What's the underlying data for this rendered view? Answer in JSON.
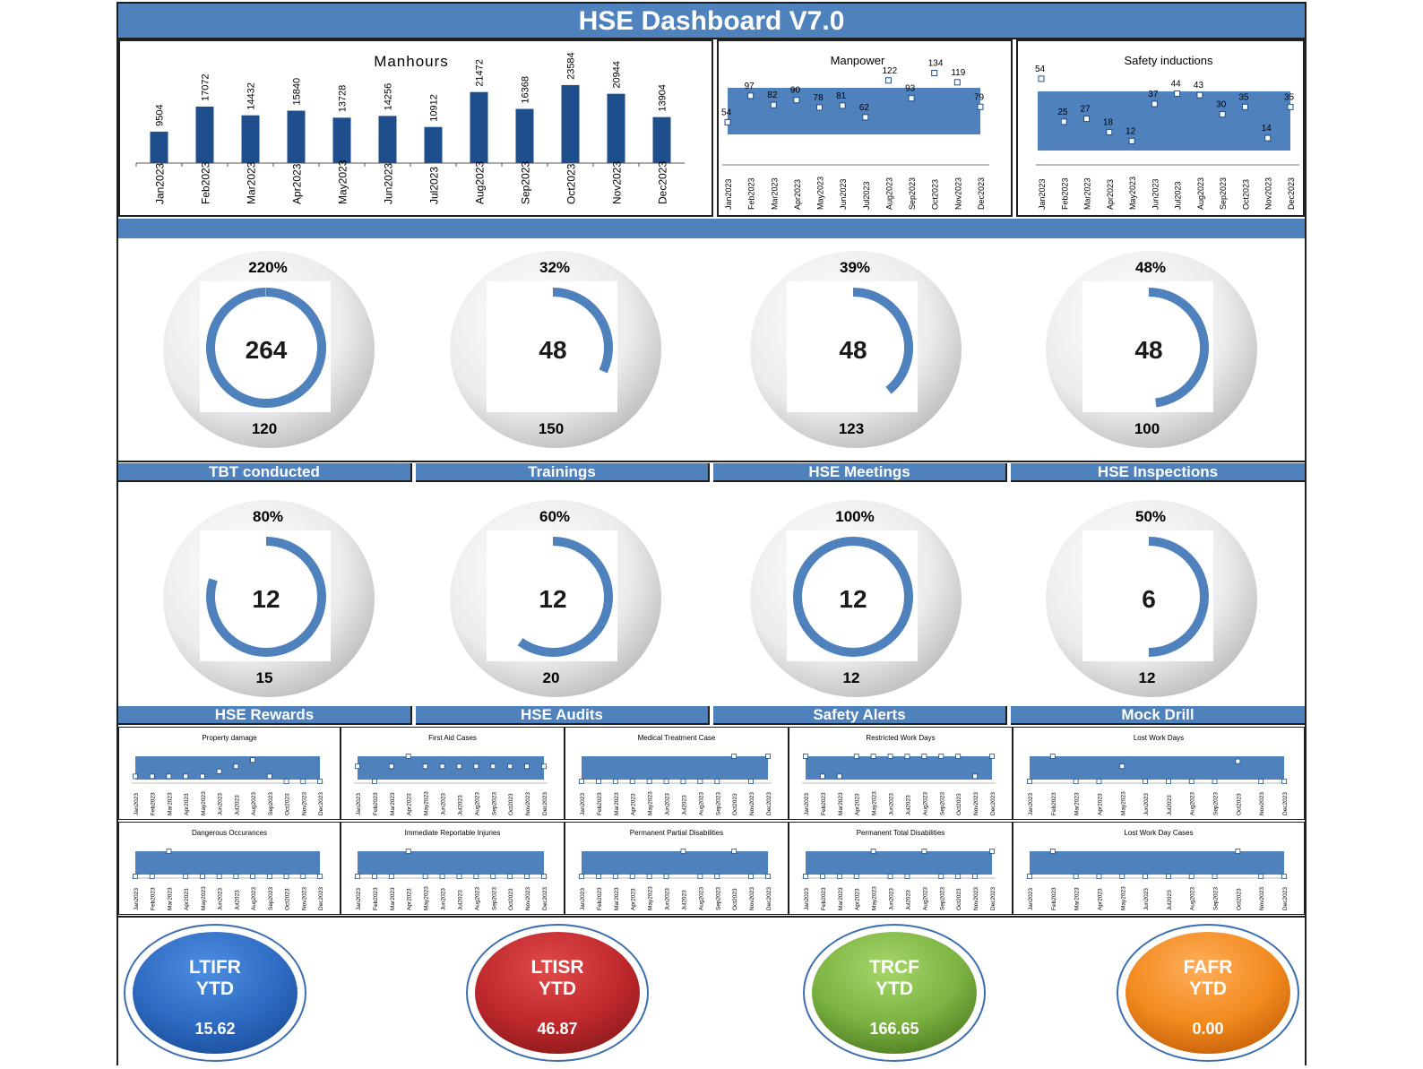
{
  "title": "HSE Dashboard V7.0",
  "colors": {
    "accent": "#4f81bd",
    "bar": "#1f4e8c",
    "blue": "#2e6bc2",
    "red": "#c0292c",
    "green": "#7cb342",
    "orange": "#f28a1e"
  },
  "months": [
    "Jan2023",
    "Feb2023",
    "Mar2023",
    "Apr2023",
    "May2023",
    "Jun2023",
    "Jul2023",
    "Aug2023",
    "Sep2023",
    "Oct2023",
    "Nov2023",
    "Dec2023"
  ],
  "chart_data": [
    {
      "type": "bar",
      "title": "Manhours",
      "categories": [
        "Jan2023",
        "Feb2023",
        "Mar2023",
        "Apr2023",
        "May2023",
        "Jun2023",
        "Jul2023",
        "Aug2023",
        "Sep2023",
        "Oct2023",
        "Nov2023",
        "Dec2023"
      ],
      "values": [
        9504,
        17072,
        14432,
        15840,
        13728,
        14256,
        10912,
        21472,
        16368,
        23584,
        20944,
        13904
      ],
      "ylim": [
        0,
        26000
      ]
    },
    {
      "type": "line",
      "title": "Manpower",
      "categories": [
        "Jan2023",
        "Feb2023",
        "Mar2023",
        "Apr2023",
        "May2023",
        "Jun2023",
        "Jul2023",
        "Aug2023",
        "Sep2023",
        "Oct2023",
        "Nov2023",
        "Dec2023"
      ],
      "values": [
        54,
        97,
        82,
        90,
        78,
        81,
        62,
        122,
        93,
        134,
        119,
        79
      ],
      "ylim": [
        40,
        145
      ]
    },
    {
      "type": "line",
      "title": "Safety inductions",
      "categories": [
        "Jan2023",
        "Feb2023",
        "Mar2023",
        "Apr2023",
        "May2023",
        "Jun2023",
        "Jul2023",
        "Aug2023",
        "Sep2023",
        "Oct2023",
        "Nov2023",
        "Dec2023"
      ],
      "values": [
        54,
        25,
        27,
        18,
        12,
        37,
        44,
        43,
        30,
        35,
        14,
        35
      ],
      "ylim": [
        8,
        60
      ]
    }
  ],
  "gauges_row1": [
    {
      "pct": "220%",
      "value": "264",
      "target": "120",
      "fill": 1.0
    },
    {
      "pct": "32%",
      "value": "48",
      "target": "150",
      "fill": 0.32
    },
    {
      "pct": "39%",
      "value": "48",
      "target": "123",
      "fill": 0.39
    },
    {
      "pct": "48%",
      "value": "48",
      "target": "100",
      "fill": 0.48
    }
  ],
  "labels_row1": [
    "TBT conducted",
    "Trainings",
    "HSE  Meetings",
    "HSE Inspections"
  ],
  "gauges_row2": [
    {
      "pct": "80%",
      "value": "12",
      "target": "15",
      "fill": 0.8
    },
    {
      "pct": "60%",
      "value": "12",
      "target": "20",
      "fill": 0.6
    },
    {
      "pct": "100%",
      "value": "12",
      "target": "12",
      "fill": 1.0
    },
    {
      "pct": "50%",
      "value": "6",
      "target": "12",
      "fill": 0.5
    }
  ],
  "labels_row2": [
    "HSE Rewards",
    "HSE Audits",
    "Safety Alerts",
    "Mock Drill"
  ],
  "mini_charts": [
    {
      "title": "Property damage",
      "values": [
        0.2,
        0.2,
        0.2,
        0.2,
        0.2,
        0.4,
        0.6,
        0.85,
        0.2,
        0,
        0,
        0
      ]
    },
    {
      "title": "First Aid Cases",
      "values": [
        0.6,
        0,
        0.6,
        1,
        0.6,
        0.6,
        0.6,
        0.6,
        0.6,
        0.6,
        0.6,
        0.6
      ]
    },
    {
      "title": "Medical Treatment Case",
      "values": [
        0,
        0,
        0,
        0,
        0,
        0,
        0,
        0,
        0,
        1,
        0,
        1
      ]
    },
    {
      "title": "Restricted Work Days",
      "values": [
        1,
        0.2,
        0.2,
        1,
        1,
        1,
        1,
        1,
        1,
        1,
        0.2,
        1
      ]
    },
    {
      "title": "Lost Work Days",
      "values": [
        0,
        1,
        0,
        0,
        0.6,
        0,
        0,
        0,
        0,
        0.8,
        0,
        0
      ]
    },
    {
      "title": "Dangerous Occurances",
      "values": [
        0,
        0,
        1,
        0,
        0,
        0,
        0,
        0,
        0,
        0,
        0,
        0
      ]
    },
    {
      "title": "Immediate Reportable Injuries",
      "values": [
        0,
        0,
        0,
        1,
        0,
        0,
        0,
        0,
        0,
        0,
        0,
        0
      ]
    },
    {
      "title": "Permanent Partial Disabilities",
      "values": [
        0,
        0,
        0,
        0,
        0,
        0,
        1,
        0,
        0,
        1,
        0,
        0
      ]
    },
    {
      "title": "Permanent Total Disabilities",
      "values": [
        0,
        0,
        0,
        0,
        1,
        0,
        0,
        1,
        0,
        0,
        0,
        1
      ]
    },
    {
      "title": "Lost Work Day Cases",
      "values": [
        0,
        1,
        0,
        0,
        0,
        0,
        0,
        0,
        0,
        1,
        0,
        0
      ]
    }
  ],
  "kpis": [
    {
      "line1": "LTIFR",
      "line2": "YTD",
      "value": "15.62"
    },
    {
      "line1": "LTISR",
      "line2": "YTD",
      "value": "46.87"
    },
    {
      "line1": "TRCF",
      "line2": "YTD",
      "value": "166.65"
    },
    {
      "line1": "FAFR",
      "line2": "YTD",
      "value": "0.00"
    }
  ]
}
